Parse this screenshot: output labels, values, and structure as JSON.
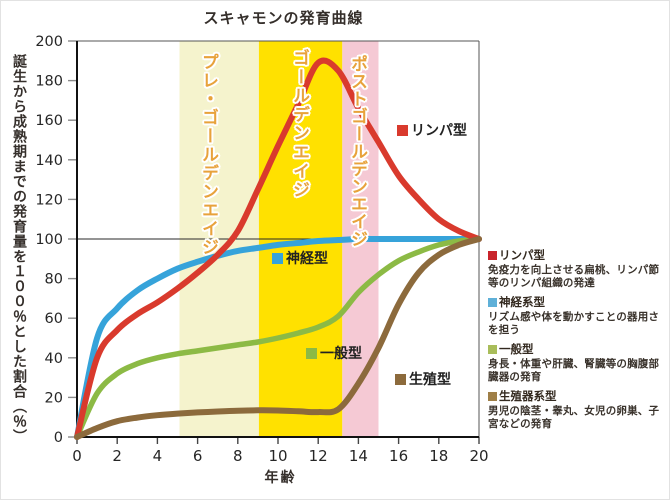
{
  "title": "スキャモンの発育曲線",
  "chart_data": {
    "type": "line",
    "title": "スキャモンの発育曲線",
    "xlabel": "年齢",
    "ylabel": "誕生から成熟期までの発育量を１００％とした割合（％）",
    "xlim": [
      0,
      20
    ],
    "ylim": [
      0,
      200
    ],
    "xticks": [
      0,
      2,
      4,
      6,
      8,
      10,
      12,
      14,
      16,
      18,
      20
    ],
    "yticks": [
      0,
      20,
      40,
      60,
      80,
      100,
      120,
      140,
      160,
      180,
      200
    ],
    "reference_line_y": 100,
    "grid": false,
    "x": [
      0,
      1,
      2,
      3,
      4,
      5,
      6,
      7,
      8,
      9,
      10,
      11,
      12,
      13,
      14,
      15,
      16,
      17,
      18,
      19,
      20
    ],
    "series": [
      {
        "name": "神経型",
        "chart_label": "神経型",
        "color": "#36a3da",
        "width": 6,
        "values": [
          0,
          50,
          65,
          74,
          80,
          85,
          88.5,
          91.5,
          94,
          95.5,
          97,
          98,
          99,
          99.5,
          100,
          100,
          100,
          100,
          100,
          100,
          100
        ]
      },
      {
        "name": "一般型",
        "chart_label": "一般型",
        "color": "#8cba45",
        "width": 5.5,
        "values": [
          0,
          22,
          32,
          37,
          40,
          42,
          43.5,
          45,
          46.5,
          48,
          50,
          52.5,
          55.5,
          61,
          73,
          82,
          89,
          93.5,
          97,
          99,
          100
        ]
      },
      {
        "name": "リンパ型",
        "chart_label": "リンパ型",
        "color": "#d93a2d",
        "width": 6,
        "values": [
          0,
          40,
          54,
          62,
          68,
          75,
          83,
          92,
          104,
          125,
          147,
          168,
          189,
          185,
          166,
          149,
          132,
          120,
          110,
          104,
          100
        ]
      },
      {
        "name": "生殖型",
        "chart_label": "生殖型",
        "color": "#8c6a3c",
        "width": 6,
        "values": [
          0,
          4.5,
          8,
          9.8,
          11,
          11.8,
          12.4,
          12.9,
          13.3,
          13.5,
          13.4,
          13,
          12.6,
          14,
          27,
          45,
          67,
          83,
          92,
          97,
          100
        ]
      }
    ],
    "bands": [
      {
        "label": "プレ・ゴールデンエイジ",
        "from": 5.1,
        "to": 9.05,
        "color": "#f5f3cd"
      },
      {
        "label": "ゴールデンエイジ",
        "from": 9.05,
        "to": 13.2,
        "color": "#ffe100"
      },
      {
        "label": "ポストゴールデンエイジ",
        "from": 13.2,
        "to": 15,
        "color": "#f5c9d4"
      }
    ],
    "band_label_color": "#e8a23b"
  },
  "legend": {
    "items": [
      {
        "heading": "リンパ型",
        "color": "#c9242b",
        "body": "免疫力を向上させる扁桃、リンパ節等のリンパ組織の発達"
      },
      {
        "heading": "神経系型",
        "color": "#5fb0d8",
        "body": "リズム感や体を動かすことの器用さを担う"
      },
      {
        "heading": "一般型",
        "color": "#a9bd5a",
        "body": "身長・体重や肝臓、腎臓等の胸腹部臓器の発育"
      },
      {
        "heading": "生殖器系型",
        "color": "#9f7f47",
        "body": "男児の陰茎・睾丸、女児の卵巣、子宮などの発育"
      }
    ]
  }
}
